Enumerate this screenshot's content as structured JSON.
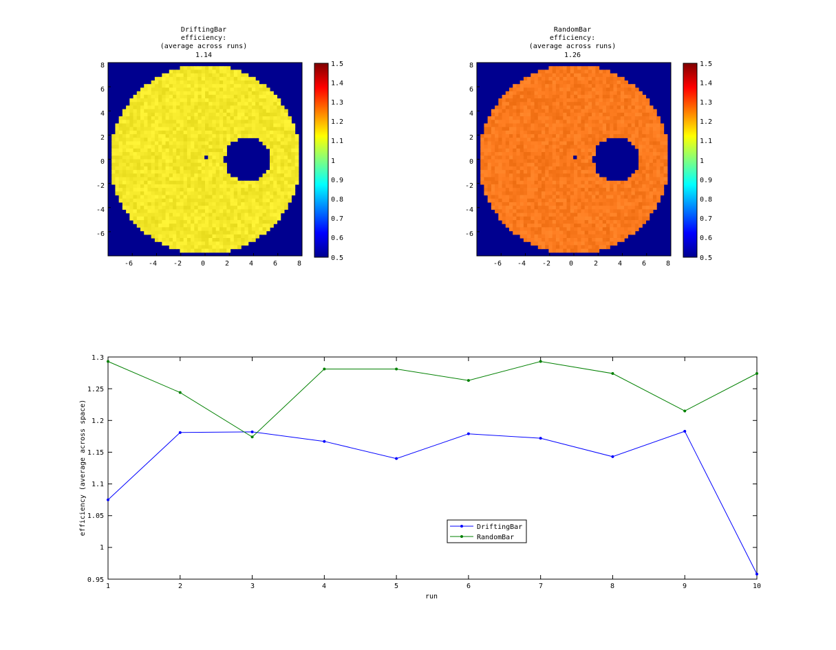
{
  "chart_data": [
    {
      "type": "heatmap",
      "title_lines": [
        "DriftingBar",
        "efficiency:",
        "(average across runs)",
        "1.14"
      ],
      "mean_value": 1.14,
      "xlim": [
        -8,
        8
      ],
      "ylim": [
        -8,
        8
      ],
      "x_ticks": [
        -6,
        -4,
        -2,
        0,
        2,
        4,
        6,
        8
      ],
      "y_ticks": [
        8,
        6,
        4,
        2,
        0,
        -2,
        -4,
        -6
      ],
      "aperture_radius": 7.8,
      "hole_center": [
        3.5,
        0
      ],
      "hole_radius": 1.9,
      "background_color": "#00008f",
      "field_base_color": "#f4e82a",
      "colorbar": {
        "range": [
          0.5,
          1.5
        ],
        "ticks": [
          "1.5",
          "1.4",
          "1.3",
          "1.2",
          "1.1",
          "1",
          "0.9",
          "0.8",
          "0.7",
          "0.6",
          "0.5"
        ]
      }
    },
    {
      "type": "heatmap",
      "title_lines": [
        "RandomBar",
        "efficiency:",
        "(average across runs)",
        "1.26"
      ],
      "mean_value": 1.26,
      "xlim": [
        -8,
        8
      ],
      "ylim": [
        -8,
        8
      ],
      "x_ticks": [
        -6,
        -4,
        -2,
        0,
        2,
        4,
        6,
        8
      ],
      "y_ticks": [
        8,
        6,
        4,
        2,
        0,
        -2,
        -4,
        -6
      ],
      "aperture_radius": 7.8,
      "hole_center": [
        3.5,
        0
      ],
      "hole_radius": 1.9,
      "background_color": "#00008f",
      "field_base_color": "#fb7a1e",
      "colorbar": {
        "range": [
          0.5,
          1.5
        ],
        "ticks": [
          "1.5",
          "1.4",
          "1.3",
          "1.2",
          "1.1",
          "1",
          "0.9",
          "0.8",
          "0.7",
          "0.6",
          "0.5"
        ]
      }
    },
    {
      "type": "line",
      "xlabel": "run",
      "ylabel": "efficiency (average across space)",
      "xlim": [
        1,
        10
      ],
      "ylim": [
        0.95,
        1.3
      ],
      "x_ticks": [
        "1",
        "2",
        "3",
        "4",
        "5",
        "6",
        "7",
        "8",
        "9",
        "10"
      ],
      "y_ticks": [
        "1.3",
        "1.25",
        "1.2",
        "1.15",
        "1.1",
        "1.05",
        "1",
        "0.95"
      ],
      "x": [
        1,
        2,
        3,
        4,
        5,
        6,
        7,
        8,
        9,
        10
      ],
      "legend_position": "lower-center",
      "series": [
        {
          "name": "DriftingBar",
          "color": "#0000ff",
          "values": [
            1.075,
            1.181,
            1.182,
            1.167,
            1.14,
            1.179,
            1.172,
            1.143,
            1.183,
            0.958
          ]
        },
        {
          "name": "RandomBar",
          "color": "#008000",
          "values": [
            1.293,
            1.244,
            1.174,
            1.281,
            1.281,
            1.263,
            1.293,
            1.274,
            1.215,
            1.274
          ]
        }
      ]
    }
  ]
}
